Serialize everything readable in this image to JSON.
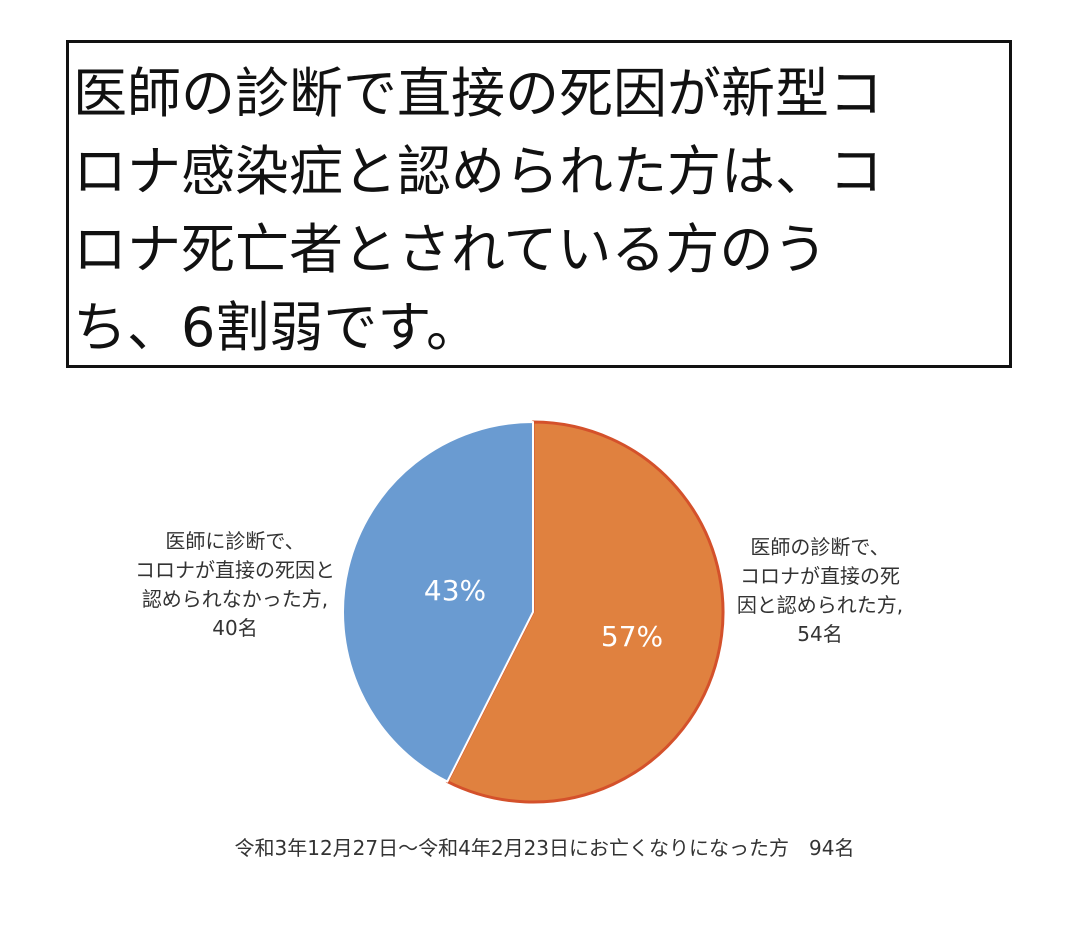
{
  "headline": {
    "lines": [
      "医師の診断で直接の死因が新型コ",
      "ロナ感染症と認められた方は、コ",
      "ロナ死亡者とされている方のう",
      "ち、6割弱です。"
    ]
  },
  "chart_data": {
    "type": "pie",
    "slices": [
      {
        "label_lines": [
          "医師の診断で、",
          "コロナが直接の死",
          "因と認められた方,",
          "54名"
        ],
        "count": 54,
        "percent_label": "57%",
        "color": "#E0813F",
        "stroke": "#D4512B"
      },
      {
        "label_lines": [
          "医師に診断で、",
          "コロナが直接の死因と",
          "認められなかった方,",
          "40名"
        ],
        "count": 40,
        "percent_label": "43%",
        "color": "#6A9BD1",
        "stroke": "#ffffff"
      }
    ],
    "caption": "令和3年12月27日～令和4年2月23日にお亡くなりになった方　94名"
  }
}
